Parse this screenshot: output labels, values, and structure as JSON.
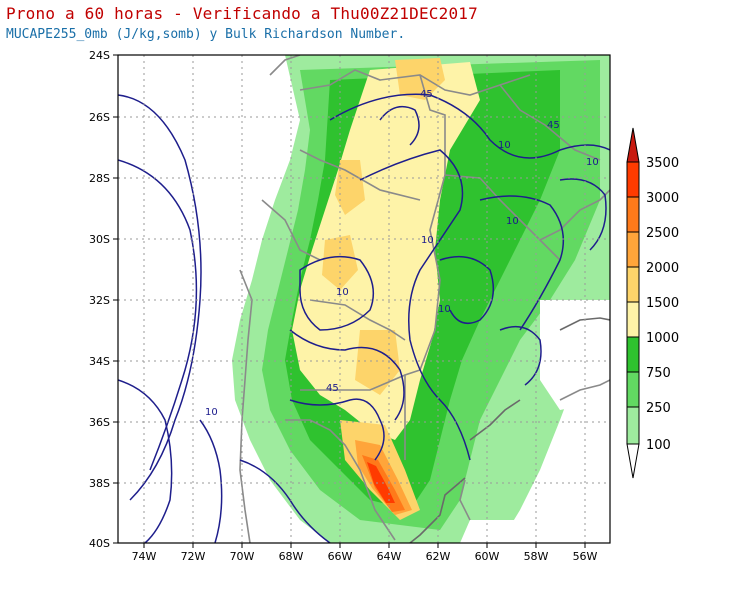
{
  "title": "Prono a 60 horas - Verificando a Thu00Z21DEC2017",
  "subtitle": "MUCAPE255_0mb (J/kg,somb) y Bulk Richardson Number.",
  "axes": {
    "x_ticks": [
      "74W",
      "72W",
      "70W",
      "68W",
      "66W",
      "64W",
      "62W",
      "60W",
      "58W",
      "56W"
    ],
    "y_ticks": [
      "24S",
      "26S",
      "28S",
      "30S",
      "32S",
      "34S",
      "36S",
      "38S",
      "40S"
    ]
  },
  "colorbar": {
    "labels": [
      "3500",
      "3000",
      "2500",
      "2000",
      "1500",
      "1000",
      "750",
      "250",
      "100"
    ],
    "colors": [
      "#ff3b00",
      "#ff7a1a",
      "#ffa53a",
      "#fdd46a",
      "#fef3a8",
      "#2fc22f",
      "#62d962",
      "#9eeb9e",
      "#cdf7cd"
    ],
    "top_triangle_color": "#c81a10"
  },
  "contour_labels": [
    "45",
    "45",
    "10",
    "10",
    "10",
    "10",
    "10",
    "10",
    "45",
    "10"
  ]
}
